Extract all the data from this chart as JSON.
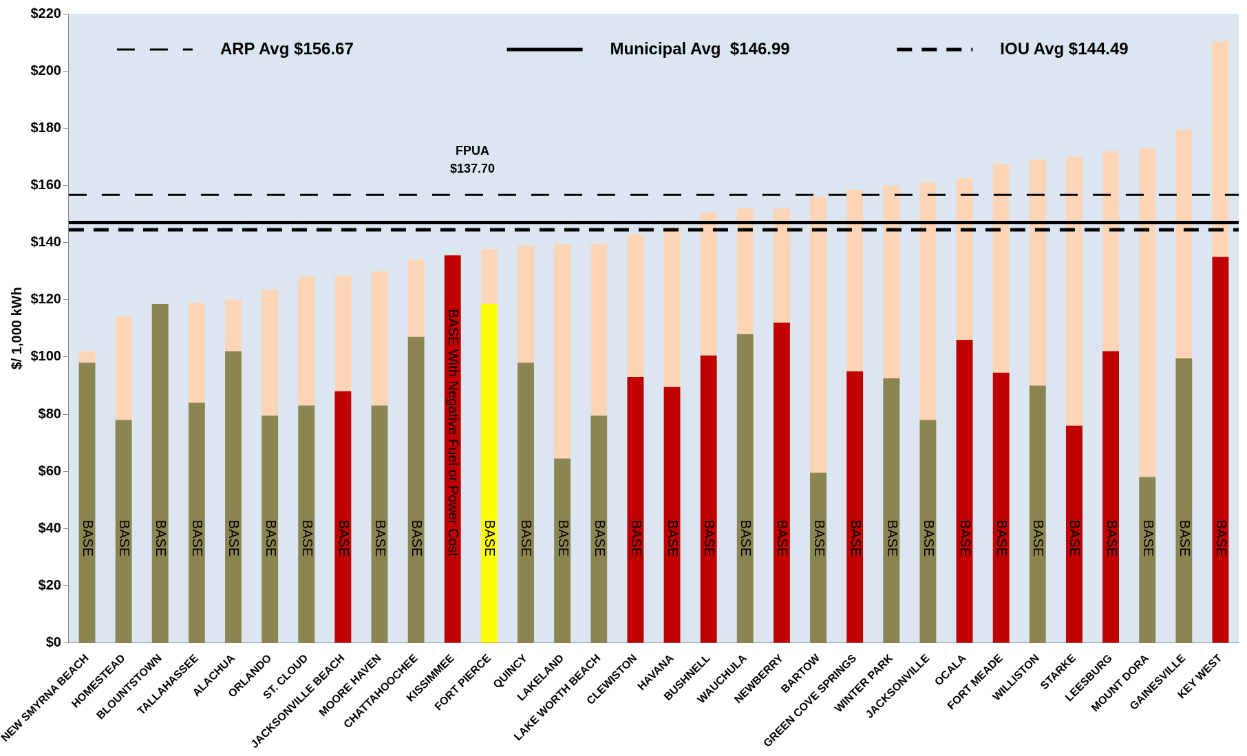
{
  "chart_data": {
    "type": "bar",
    "stacked": true,
    "ylabel": "$/ 1,000 kWh",
    "categories": [
      "NEW SMYRNA BEACH",
      "HOMESTEAD",
      "BLOUNTSTOWN",
      "TALLAHASSEE",
      "ALACHUA",
      "ORLANDO",
      "ST. CLOUD",
      "JACKSONVILLE BEACH",
      "MOORE HAVEN",
      "CHATTAHOOCHEE",
      "KISSIMMEE",
      "FORT PIERCE",
      "QUINCY",
      "LAKELAND",
      "LAKE WORTH BEACH",
      "CLEWISTON",
      "HAVANA",
      "BUSHNELL",
      "WAUCHULA",
      "NEWBERRY",
      "BARTOW",
      "GREEN COVE SPRINGS",
      "WINTER PARK",
      "JACKSONVILLE",
      "OCALA",
      "FORT MEADE",
      "WILLISTON",
      "STARKE",
      "LEESBURG",
      "MOUNT DORA",
      "GAINESVILLE",
      "KEY WEST"
    ],
    "series": [
      {
        "colors": [
          "#8b8552",
          "#8b8552",
          "#8b8552",
          "#8b8552",
          "#8b8552",
          "#8b8552",
          "#8b8552",
          "#c00000",
          "#8b8552",
          "#8b8552",
          "#c00000",
          "#ffff00",
          "#8b8552",
          "#8b8552",
          "#8b8552",
          "#c00000",
          "#c00000",
          "#c00000",
          "#8b8552",
          "#c00000",
          "#8b8552",
          "#c00000",
          "#8b8552",
          "#8b8552",
          "#c00000",
          "#c00000",
          "#8b8552",
          "#c00000",
          "#c00000",
          "#8b8552",
          "#8b8552",
          "#c00000"
        ],
        "values": [
          98,
          78,
          118.5,
          84,
          102,
          79.5,
          83,
          88,
          83,
          107,
          135.5,
          118.5,
          98,
          64.5,
          79.5,
          93,
          89.5,
          100.5,
          108,
          112,
          59.5,
          95,
          92.5,
          78,
          106,
          94.5,
          90,
          76,
          102,
          58,
          99.5,
          135
        ],
        "value_labels": [
          "BASE",
          "BASE",
          "BASE",
          "BASE",
          "BASE",
          "BASE",
          "BASE",
          "BASE",
          "BASE",
          "BASE",
          "BASE With Negative Fuel or Power Cost",
          "BASE",
          "BASE",
          "BASE",
          "BASE",
          "BASE",
          "BASE",
          "BASE",
          "BASE",
          "BASE",
          "BASE",
          "BASE",
          "BASE",
          "BASE",
          "BASE",
          "BASE",
          "BASE",
          "BASE",
          "BASE",
          "BASE",
          "BASE",
          "BASE"
        ]
      },
      {
        "color": "#fbd5b5",
        "values": [
          4,
          36,
          null,
          35,
          18,
          44,
          45,
          40.5,
          47,
          27,
          null,
          19.2,
          41,
          75,
          60,
          50,
          56,
          50,
          44,
          40,
          96.5,
          63.5,
          67.5,
          83,
          56.5,
          73,
          79,
          94,
          70,
          115,
          80,
          75.5
        ]
      }
    ],
    "ylim": [
      0,
      220
    ],
    "yticks": [
      {
        "value": 0,
        "label": "$0"
      },
      {
        "value": 20,
        "label": "$20"
      },
      {
        "value": 40,
        "label": "$40"
      },
      {
        "value": 60,
        "label": "$60"
      },
      {
        "value": 80,
        "label": "$80"
      },
      {
        "value": 100,
        "label": "$100"
      },
      {
        "value": 120,
        "label": "$120"
      },
      {
        "value": 140,
        "label": "$140"
      },
      {
        "value": 160,
        "label": "$160"
      },
      {
        "value": 180,
        "label": "$180"
      },
      {
        "value": 200,
        "label": "$200"
      },
      {
        "value": 220,
        "label": "$220"
      }
    ],
    "ref_lines": [
      {
        "axis": "y",
        "value": 156.67,
        "label": "ARP Avg $156.67",
        "color": "#000000",
        "line_style": "double"
      },
      {
        "axis": "y",
        "value": 146.99,
        "label": "Municipal Avg  $146.99",
        "color": "#000000",
        "line_style": "solid"
      },
      {
        "axis": "y",
        "value": 144.49,
        "label": "IOU Avg $144.49",
        "color": "#000000",
        "line_style": "dashed"
      }
    ],
    "annotations": [
      "FPUA\n$137.70"
    ],
    "legend": "top"
  }
}
